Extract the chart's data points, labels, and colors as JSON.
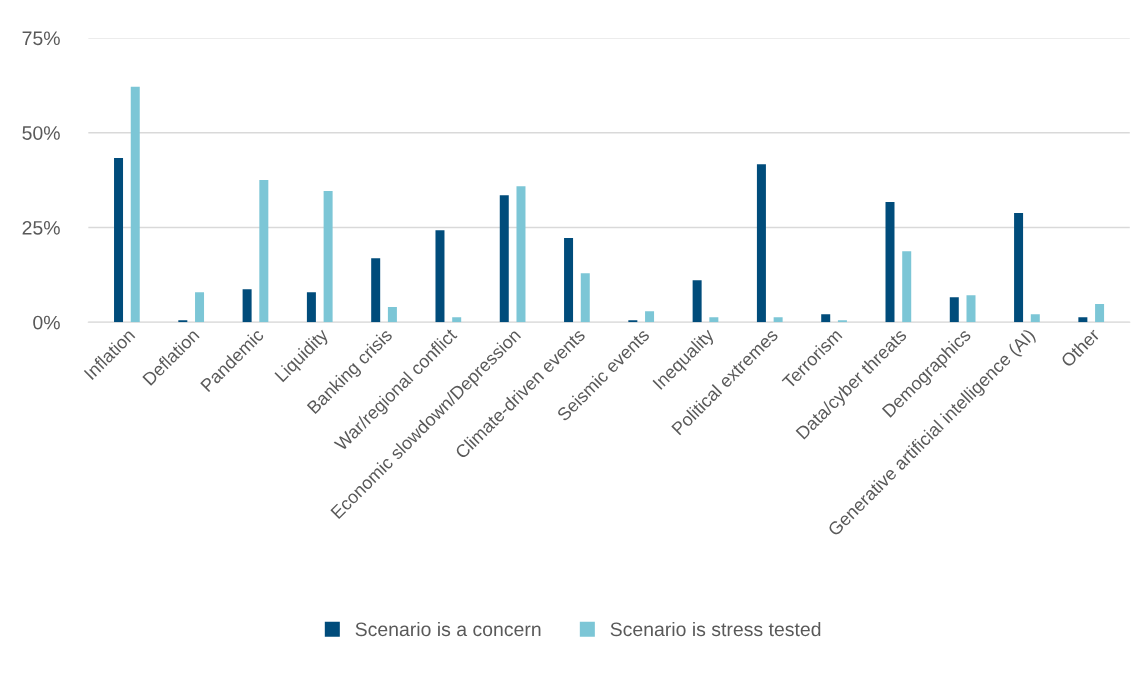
{
  "chart_data": {
    "type": "bar",
    "categories": [
      "Inflation",
      "Deflation",
      "Pandemic",
      "Liquidity",
      "Banking crisis",
      "War/regional conflict",
      "Economic slowdown/Depression",
      "Climate-driven events",
      "Seismic events",
      "Inequality",
      "Political extremes",
      "Terrorism",
      "Data/cyber threats",
      "Demographics",
      "Generative artificial intelligence (AI)",
      "Other"
    ],
    "series": [
      {
        "name": "Scenario is a concern",
        "color": "#004c7b",
        "values": [
          43.3,
          0.5,
          8.7,
          7.9,
          16.9,
          24.3,
          33.5,
          22.2,
          0.5,
          11.1,
          41.7,
          2.1,
          31.7,
          6.6,
          28.8,
          1.3
        ]
      },
      {
        "name": "Scenario is stress tested",
        "color": "#7cc6d6",
        "values": [
          62.1,
          7.9,
          37.5,
          34.6,
          4.0,
          1.3,
          35.9,
          12.9,
          2.9,
          1.3,
          1.3,
          0.5,
          18.7,
          7.1,
          2.1,
          4.8
        ]
      }
    ],
    "ylim": [
      0,
      75
    ],
    "yticks": [
      {
        "value": 0,
        "label": "0%"
      },
      {
        "value": 25,
        "label": "25%"
      },
      {
        "value": 50,
        "label": "50%"
      },
      {
        "value": 75,
        "label": "75%"
      }
    ],
    "grid": "y",
    "legend": "bottom"
  }
}
